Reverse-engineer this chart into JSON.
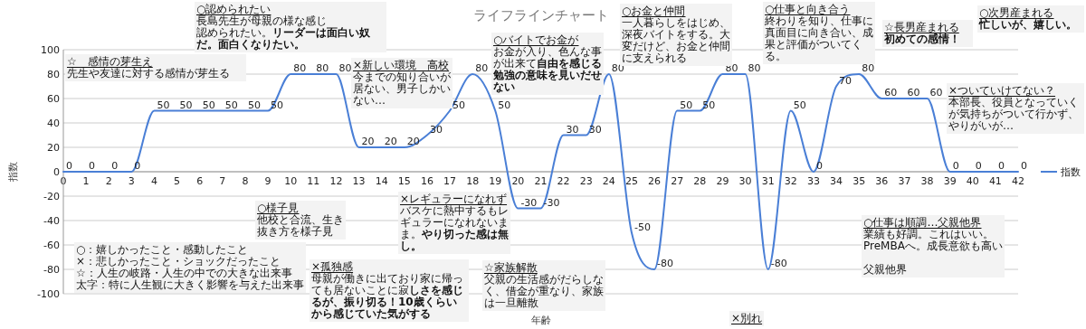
{
  "chart_data": {
    "type": "line",
    "title": "ライフラインチャート",
    "xlabel": "年齢",
    "ylabel": "指数",
    "x": [
      0,
      1,
      2,
      3,
      4,
      5,
      6,
      7,
      8,
      9,
      10,
      11,
      12,
      13,
      14,
      15,
      16,
      17,
      18,
      19,
      20,
      21,
      22,
      23,
      24,
      25,
      26,
      27,
      28,
      29,
      30,
      31,
      32,
      33,
      34,
      35,
      36,
      37,
      38,
      39,
      40,
      41,
      42
    ],
    "series": [
      {
        "name": "指数",
        "color": "#4a7fd6",
        "values": [
          0,
          0,
          0,
          0,
          50,
          50,
          50,
          50,
          50,
          50,
          80,
          80,
          80,
          20,
          20,
          20,
          30,
          50,
          80,
          50,
          -30,
          -30,
          30,
          30,
          80,
          -50,
          -80,
          50,
          50,
          80,
          80,
          -80,
          50,
          0,
          70,
          80,
          60,
          60,
          60,
          0,
          0,
          0,
          0
        ]
      }
    ],
    "xlim": [
      0,
      42
    ],
    "ylim": [
      -100,
      100
    ],
    "xticks": [
      0,
      1,
      2,
      3,
      4,
      5,
      6,
      7,
      8,
      9,
      10,
      11,
      12,
      13,
      14,
      15,
      16,
      17,
      18,
      19,
      20,
      21,
      22,
      23,
      24,
      25,
      26,
      27,
      28,
      29,
      30,
      31,
      32,
      33,
      34,
      35,
      36,
      37,
      38,
      39,
      40,
      41,
      42
    ],
    "yticks": [
      -100,
      -80,
      -60,
      -40,
      -20,
      0,
      20,
      40,
      60,
      80,
      100
    ],
    "grid": "y",
    "legend": "right",
    "data_labels": true,
    "marker": "none",
    "annotations": [
      "☆　感情の芽生え",
      "先生や友達に対する感情が芽生る",
      "○認められたい",
      "長島先生が母親の様な感じ",
      "認められたい。**リーダーは面白い奴だ。面白くなりたい。**",
      "×新しい環境　高校",
      "今までの知り合いが居ない、男子しかいない…",
      "○バイトでお金が",
      "お金が入り、色んな事が出来て**自由を感じる**",
      "**勉強の意味を見いだせない**",
      "○お金と仲間",
      "一人暮らしをはじめ、深夜バイトをする。大変だけど、お金と仲間に支えられる",
      "○仕事と向き合う",
      "終わりを知り、仕事に真面目に向き合い、成果と評価がついてくる。",
      "☆長男産まれる",
      "**初めての感情！**",
      "○次男産まれる",
      "**忙しいが、嬉しい。**",
      "×ついていけてない？",
      "本部長、役員となっていくが気持ちがついて行かず、やりがいが…",
      "○：嬉しかったこと・感動したこと",
      "×：悲しかったこと・ショックだったこと",
      "☆：人生の岐路・人生の中での大きな出来事",
      "太字：特に人生観に大きく影響を与えた出来事",
      "○様子見",
      "他校と合流、生き抜き方を様子見",
      "×孤独感",
      "母親が働きに出ており家に帰っても居ないことに寂**しさを感じるが、振り切る！10歳くらいから感じていた気がする**",
      "×レギュラーになれず",
      "バスケに熱中するもレギュラーになれないまま。**やり切った感は無し。**",
      "☆家族解散",
      "父親の生活感がだらしなく、借金が重なり、家族は一旦離散",
      "○仕事は順調…父親他界",
      "業績も好調。これはいい。",
      "PreMBAへ。成長意欲も高い",
      "父親他界",
      "×別れ"
    ]
  }
}
